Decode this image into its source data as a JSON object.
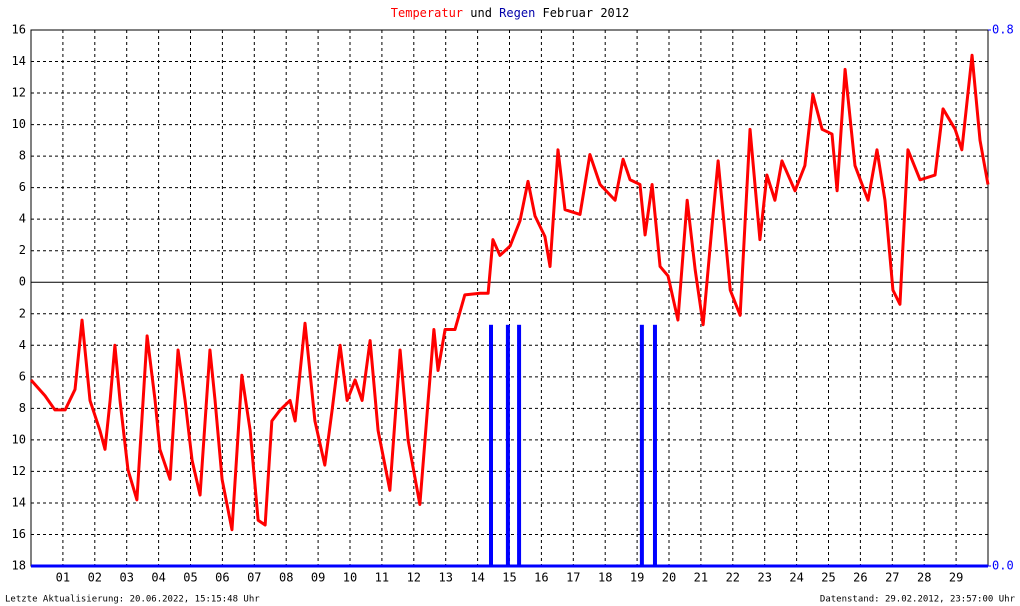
{
  "chart_data": {
    "type": "line",
    "title": [
      "Temperatur",
      "und",
      "Regen",
      "Februar 2012"
    ],
    "footer_left": "Letzte Aktualisierung: 20.06.2022, 15:15:48 Uhr",
    "footer_right": "Datenstand: 29.02.2012, 23:57:00 Uhr",
    "xlim": [
      0,
      30
    ],
    "xticks": [
      {
        "value": 1,
        "label": "01"
      },
      {
        "value": 2,
        "label": "02"
      },
      {
        "value": 3,
        "label": "03"
      },
      {
        "value": 4,
        "label": "04"
      },
      {
        "value": 5,
        "label": "05"
      },
      {
        "value": 6,
        "label": "06"
      },
      {
        "value": 7,
        "label": "07"
      },
      {
        "value": 8,
        "label": "08"
      },
      {
        "value": 9,
        "label": "09"
      },
      10,
      11,
      12,
      13,
      14,
      15,
      16,
      17,
      18,
      19,
      20,
      21,
      22,
      23,
      24,
      25,
      26,
      27,
      28,
      29
    ],
    "ylim": [
      -18,
      16
    ],
    "yticks": [
      {
        "value": -18,
        "label": "18"
      },
      {
        "value": -16,
        "label": "16"
      },
      {
        "value": -14,
        "label": "14"
      },
      {
        "value": -12,
        "label": "12"
      },
      {
        "value": -10,
        "label": "10"
      },
      {
        "value": -8,
        "label": "8"
      },
      {
        "value": -6,
        "label": "6"
      },
      {
        "value": -4,
        "label": "4"
      },
      {
        "value": -2,
        "label": "2"
      },
      0,
      2,
      4,
      6,
      8,
      10,
      12,
      14,
      16
    ],
    "y2lim": [
      0,
      0.8
    ],
    "y2ticks": [
      {
        "value": 0,
        "label": "0.0"
      },
      {
        "value": 0.8,
        "label": "0.8"
      }
    ],
    "grid": true,
    "series": [
      {
        "name": "Temperatur",
        "color": "#ff0000",
        "x": [
          0,
          0.44,
          0.75,
          1.07,
          1.38,
          1.6,
          1.85,
          2.16,
          2.32,
          2.48,
          2.63,
          2.79,
          3.04,
          3.32,
          3.64,
          3.89,
          4.04,
          4.36,
          4.61,
          4.83,
          5.05,
          5.3,
          5.61,
          5.77,
          5.99,
          6.3,
          6.61,
          6.87,
          7.12,
          7.34,
          7.55,
          7.81,
          8.12,
          8.28,
          8.59,
          8.9,
          9.21,
          9.44,
          9.69,
          9.91,
          10.16,
          10.38,
          10.63,
          10.88,
          11.25,
          11.57,
          11.82,
          12.19,
          12.45,
          12.63,
          12.76,
          12.98,
          13.29,
          13.6,
          14.08,
          14.33,
          14.48,
          14.7,
          15.02,
          15.33,
          15.58,
          15.8,
          16.11,
          16.27,
          16.52,
          16.74,
          17.21,
          17.52,
          17.84,
          18.31,
          18.56,
          18.78,
          19.09,
          19.25,
          19.47,
          19.72,
          19.97,
          20.28,
          20.57,
          20.82,
          21.07,
          21.35,
          21.54,
          21.92,
          22.23,
          22.54,
          22.85,
          23.07,
          23.32,
          23.54,
          23.95,
          24.26,
          24.51,
          24.8,
          25.11,
          25.27,
          25.52,
          25.83,
          26.24,
          26.52,
          26.77,
          27.02,
          27.24,
          27.49,
          27.87,
          28.34,
          28.59,
          28.97,
          29.18,
          29.5,
          29.75,
          30
        ],
        "values": [
          -6.2,
          -7.2,
          -8.1,
          -8.1,
          -6.8,
          -2.4,
          -7.5,
          -9.4,
          -10.6,
          -7.5,
          -4.0,
          -7.5,
          -11.9,
          -13.8,
          -3.4,
          -7.5,
          -10.6,
          -12.5,
          -4.3,
          -7.5,
          -11.3,
          -13.5,
          -4.3,
          -7.5,
          -12.5,
          -15.7,
          -5.9,
          -9.4,
          -15.1,
          -15.4,
          -8.8,
          -8.1,
          -7.5,
          -8.8,
          -2.6,
          -8.8,
          -11.6,
          -8.1,
          -4.0,
          -7.5,
          -6.2,
          -7.5,
          -3.7,
          -9.4,
          -13.2,
          -4.3,
          -10,
          -14.1,
          -7.5,
          -3.0,
          -5.6,
          -3.0,
          -3.0,
          -0.8,
          -0.7,
          -0.7,
          2.7,
          1.7,
          2.3,
          3.9,
          6.4,
          4.2,
          2.9,
          1.0,
          8.4,
          4.6,
          4.3,
          8.1,
          6.2,
          5.2,
          7.8,
          6.5,
          6.2,
          3.0,
          6.2,
          1.0,
          0.4,
          -2.4,
          5.2,
          0.8,
          -2.7,
          3.6,
          7.7,
          -0.5,
          -2.1,
          9.7,
          2.7,
          6.8,
          5.2,
          7.7,
          5.8,
          7.4,
          11.9,
          9.7,
          9.4,
          5.8,
          13.5,
          7.4,
          5.2,
          8.4,
          5.2,
          -0.5,
          -1.4,
          8.4,
          6.5,
          6.8,
          11.0,
          9.7,
          8.4,
          14.4,
          9.0,
          6.2
        ]
      },
      {
        "name": "Regen",
        "color": "#0000ff",
        "axis": "y2",
        "type": "bar",
        "x": [
          14.42,
          14.95,
          15.3,
          19.15,
          19.56
        ],
        "values": [
          0.36,
          0.36,
          0.36,
          0.36,
          0.36
        ]
      }
    ]
  }
}
